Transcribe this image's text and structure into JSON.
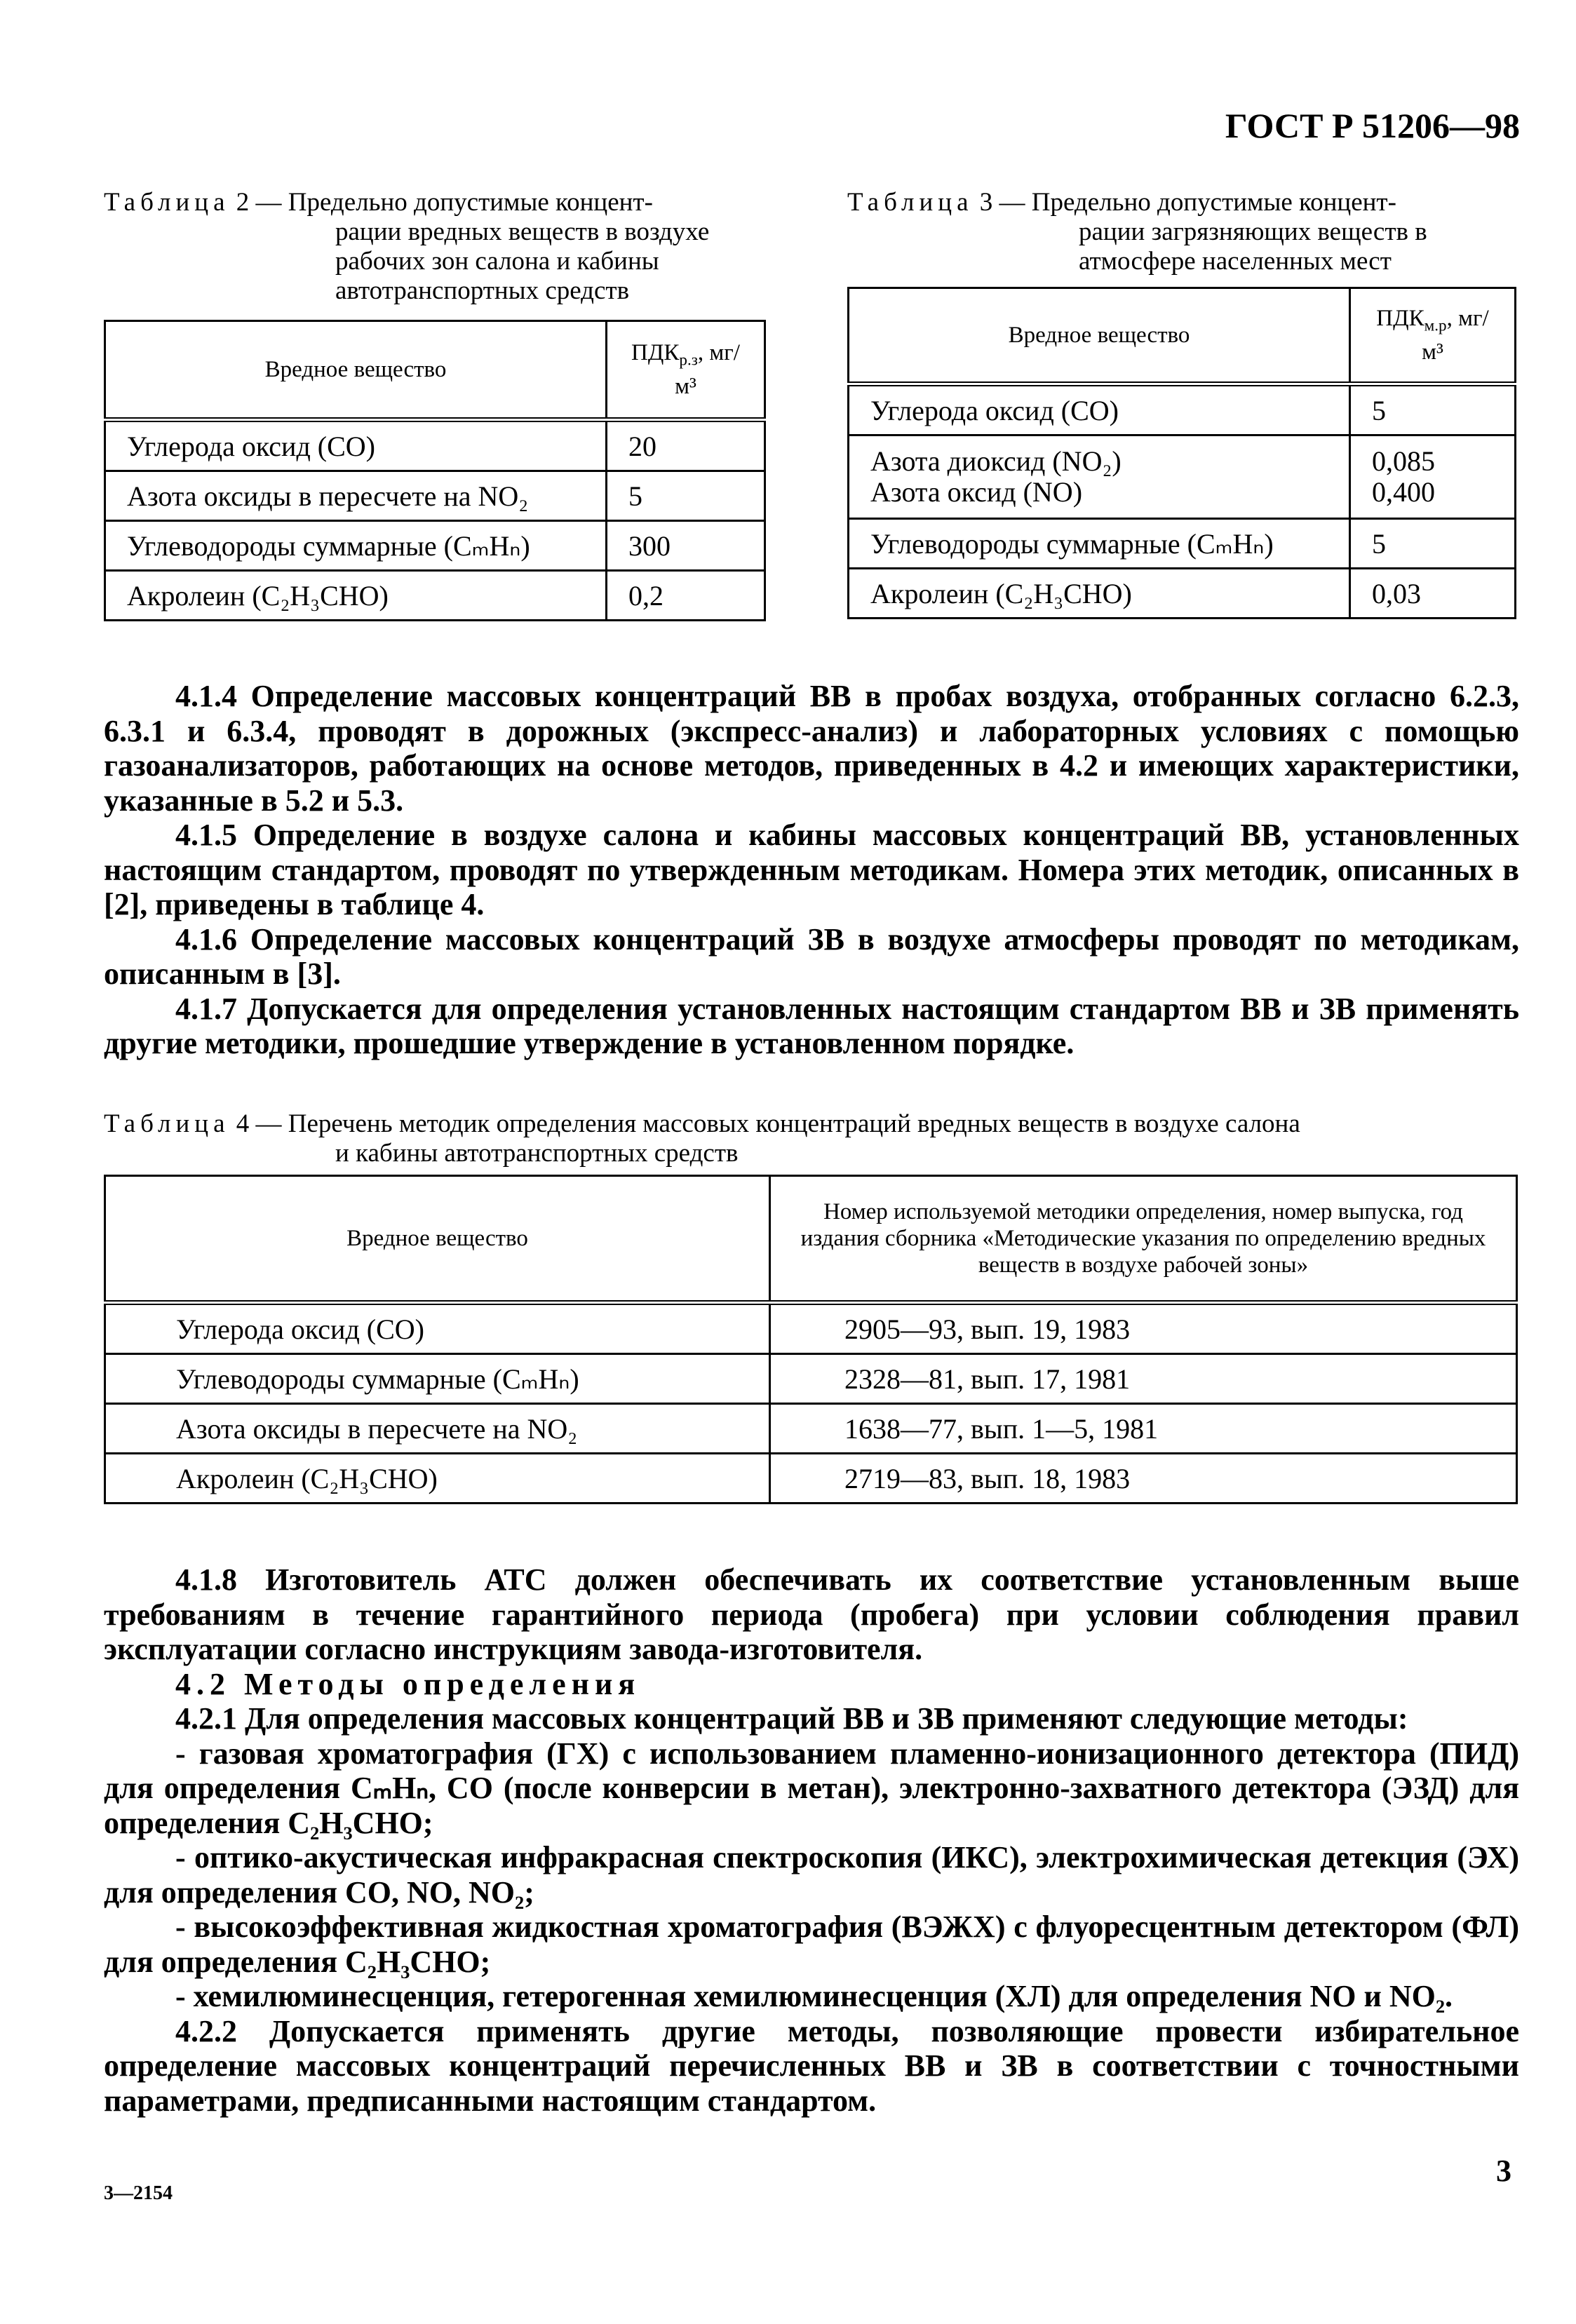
{
  "header": {
    "standard": "ГОСТ Р 51206—98"
  },
  "table2": {
    "label": "Таблица",
    "number": "2 —",
    "title_lines": [
      "Предельно допустимые концент-",
      "рации вредных веществ в воздухе",
      "рабочих зон салона и кабины",
      "автотранспортных средств"
    ],
    "col1": "Вредное вещество",
    "col2_base": "ПДК",
    "col2_sub": "р.з",
    "col2_unit": ", мг/м³",
    "rows": [
      {
        "substance": "Углерода оксид (CO)",
        "value": "20"
      },
      {
        "substance": "Азота оксиды в пересчете на NO₂",
        "value": "5"
      },
      {
        "substance": "Углеводороды суммарные (CₘHₙ)",
        "value": "300"
      },
      {
        "substance": "Акролеин (C₂H₃CHO)",
        "value": "0,2"
      }
    ]
  },
  "table3": {
    "label": "Таблица",
    "number": "3 —",
    "title_lines": [
      "Предельно допустимые концент-",
      "рации загрязняющих веществ в",
      "атмосфере населенных мест"
    ],
    "col1": "Вредное вещество",
    "col2_base": "ПДК",
    "col2_sub": "м.р",
    "col2_unit": ", мг/м³",
    "rows": [
      {
        "substance": "Углерода оксид (CO)",
        "value": "5"
      },
      {
        "substance": "Азота диоксид (NO₂)",
        "value": "0,085",
        "substance2": "Азота оксид (NO)",
        "value2": "0,400"
      },
      {
        "substance": "Углеводороды суммарные (CₘHₙ)",
        "value": "5"
      },
      {
        "substance": "Акролеин (C₂H₃CHO)",
        "value": "0,03"
      }
    ]
  },
  "paragraphs1": [
    "4.1.4 Определение массовых концентраций ВВ в пробах воздуха, отобранных согласно 6.2.3, 6.3.1 и 6.3.4, проводят в дорожных (экспресс-анализ) и лабораторных условиях с помощью газоанализаторов, работающих на основе методов, приведенных в 4.2 и имеющих характеристики, указанные в 5.2 и 5.3.",
    "4.1.5 Определение в воздухе салона и кабины массовых концентраций ВВ, установленных настоящим стандартом, проводят по утвержденным методикам. Номера этих методик, описанных в [2], приведены в таблице 4.",
    "4.1.6 Определение массовых концентраций ЗВ в воздухе атмосферы проводят по методикам, описанным в [3].",
    "4.1.7 Допускается для определения установленных настоящим стандартом ВВ и ЗВ применять другие методики, прошедшие утверждение в установленном порядке."
  ],
  "table4": {
    "label": "Таблица",
    "number": "4 —",
    "title_lines": [
      "Перечень методик определения массовых концентраций вредных веществ в воздухе салона",
      "и кабины автотранспортных средств"
    ],
    "col1": "Вредное вещество",
    "col2": "Номер используемой методики определения, номер выпуска, год издания сборника «Методические указания по определению вредных веществ в воздухе рабочей зоны»",
    "rows": [
      {
        "substance": "Углерода оксид (CO)",
        "method": "2905—93, вып. 19, 1983"
      },
      {
        "substance": "Углеводороды суммарные (CₘHₙ)",
        "method": "2328—81, вып. 17, 1981"
      },
      {
        "substance": "Азота оксиды в пересчете на NO₂",
        "method": "1638—77, вып. 1—5, 1981"
      },
      {
        "substance": "Акролеин (C₂H₃CHO)",
        "method": "2719—83, вып. 18, 1983"
      }
    ]
  },
  "paragraphs2": {
    "p418": "4.1.8 Изготовитель АТС должен обеспечивать их соответствие установленным выше требованиям в течение гарантийного периода (пробега) при условии соблюдения правил эксплуатации согласно инструкциям завода-изготовителя.",
    "section_heading": "4.2 Методы определения",
    "p421": "4.2.1 Для определения массовых концентраций ВВ и ЗВ применяют следующие методы:",
    "items": [
      "- газовая хроматография (ГХ) с использованием пламенно-ионизационного детектора (ПИД) для определения CₘHₙ, CO (после конверсии в метан), электронно-захватного детектора (ЭЗД) для определения C₂H₃CHO;",
      "- оптико-акустическая инфракрасная спектроскопия (ИКС), электрохимическая детекция (ЭХ) для определения CO, NO, NO₂;",
      "- высокоэффективная жидкостная хроматография (ВЭЖХ) с флуоресцентным детектором (ФЛ) для определения C₂H₃CHO;",
      "- хемилюминесценция, гетерогенная хемилюминесценция (ХЛ) для определения NO и NO₂."
    ],
    "p422": "4.2.2 Допускается применять другие методы, позволяющие провести избирательное определение массовых концентраций перечисленных ВВ и ЗВ в соответствии с точностными параметрами, предписанными настоящим стандартом."
  },
  "footer": {
    "page_number": "3",
    "print_code": "3—2154"
  }
}
